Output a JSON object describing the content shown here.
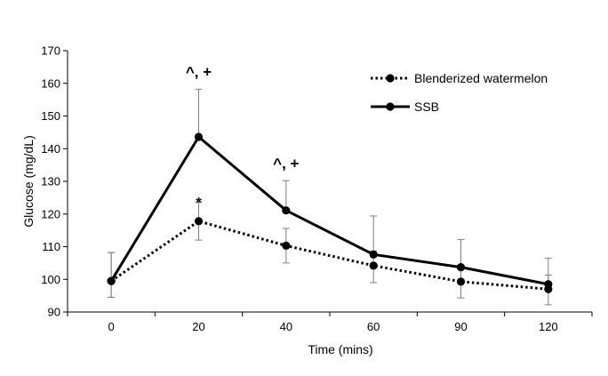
{
  "chart_data": {
    "type": "line",
    "title": "",
    "xlabel": "Time (mins)",
    "ylabel": "Glucose (mg/dL)",
    "categories": [
      "0",
      "20",
      "40",
      "60",
      "90",
      "120"
    ],
    "ylim": [
      90,
      170
    ],
    "yticks": [
      90,
      100,
      110,
      120,
      130,
      140,
      150,
      160,
      170
    ],
    "grid": false,
    "legend_position": "top-right",
    "series": [
      {
        "name": "Blenderized watermelon",
        "style": "dotted",
        "color": "#000000",
        "values": [
          99.5,
          117.8,
          110.3,
          104.2,
          99.3,
          97.0
        ],
        "error_upper": [
          8.7,
          5.8,
          5.3,
          4.5,
          4.8,
          4.3
        ],
        "error_lower": [
          5.0,
          5.8,
          5.3,
          5.2,
          5.0,
          4.8
        ]
      },
      {
        "name": "SSB",
        "style": "solid",
        "color": "#000000",
        "values": [
          99.5,
          143.6,
          121.1,
          107.6,
          103.7,
          98.5
        ],
        "error_upper": [
          8.7,
          14.6,
          9.1,
          11.8,
          8.5,
          8.0
        ],
        "error_lower": [
          5.0,
          0,
          0,
          0,
          0,
          0
        ]
      }
    ],
    "annotations": [
      {
        "text": "^, +",
        "x_index": 1,
        "y": 162.0
      },
      {
        "text": "^, +",
        "x_index": 2,
        "y": 134.0
      },
      {
        "text": "*",
        "x_index": 1,
        "y": 122.0
      }
    ]
  }
}
